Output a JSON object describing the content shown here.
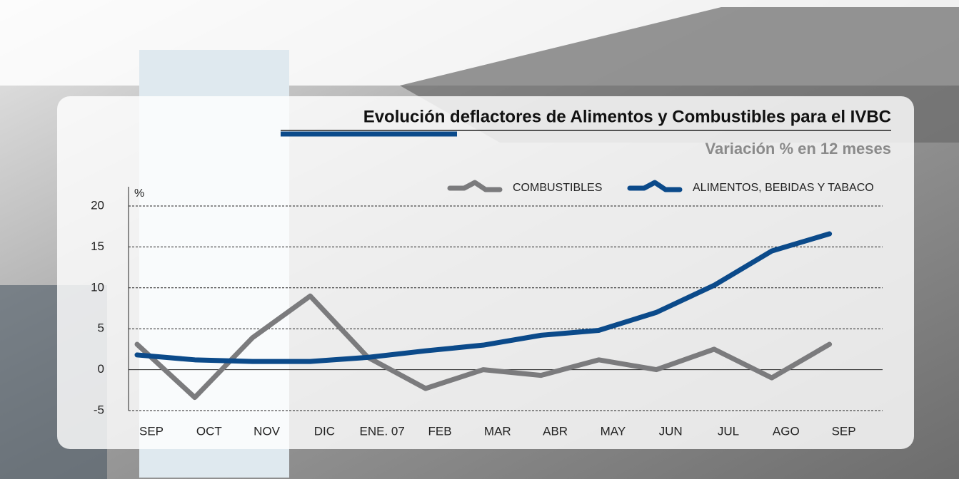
{
  "chart_data": {
    "type": "line",
    "title": "Evolución deflactores de Alimentos y Combustibles para el IVBC",
    "subtitle": "Variación % en 12 meses",
    "y_unit": "%",
    "categories": [
      "SEP",
      "OCT",
      "NOV",
      "DIC",
      "ENE. 07",
      "FEB",
      "MAR",
      "ABR",
      "MAY",
      "JUN",
      "JUL",
      "AGO",
      "SEP"
    ],
    "series": [
      {
        "name": "COMBUSTIBLES",
        "color": "#7b7b7d",
        "values": [
          3.1,
          -3.4,
          3.9,
          9.0,
          1.5,
          -2.3,
          0,
          -0.7,
          1.2,
          0,
          2.5,
          -1.0,
          3.1
        ]
      },
      {
        "name": "ALIMENTOS, BEBIDAS Y TABACO",
        "color": "#0b4a8a",
        "values": [
          1.8,
          1.2,
          1.0,
          1.0,
          1.5,
          2.3,
          3.0,
          4.2,
          4.8,
          7.0,
          10.3,
          14.5,
          16.6
        ]
      }
    ],
    "ylim": [
      -5,
      20
    ],
    "yticks": [
      -5,
      0,
      5,
      10,
      15,
      20
    ],
    "grid": true
  }
}
